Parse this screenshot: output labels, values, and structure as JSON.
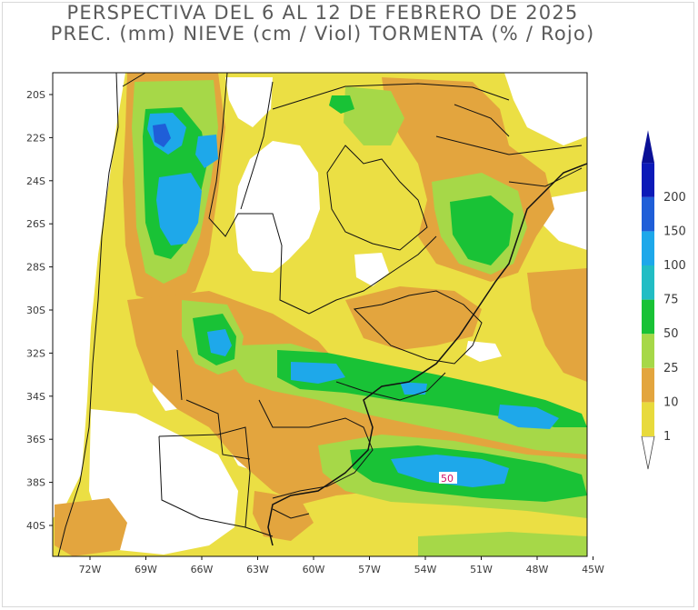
{
  "header": {
    "title_line1": "PERSPECTIVA DEL 6 AL 12 DE FEBRERO DE 2025",
    "title_line2": "PREC. (mm) NIEVE (cm / Viol) TORMENTA (% / Rojo)"
  },
  "axes": {
    "lat_labels": [
      "20S",
      "22S",
      "24S",
      "26S",
      "28S",
      "30S",
      "32S",
      "34S",
      "36S",
      "38S",
      "40S"
    ],
    "lon_labels": [
      "72W",
      "69W",
      "66W",
      "63W",
      "60W",
      "57W",
      "54W",
      "51W",
      "48W",
      "45W"
    ]
  },
  "legend": {
    "bins": [
      {
        "label": "1",
        "color": "#e8da3c"
      },
      {
        "label": "10",
        "color": "#e3a53e"
      },
      {
        "label": "25",
        "color": "#a6d848"
      },
      {
        "label": "50",
        "color": "#19c236"
      },
      {
        "label": "75",
        "color": "#22bdc4"
      },
      {
        "label": "100",
        "color": "#1ea8ea"
      },
      {
        "label": "150",
        "color": "#1f5ed8"
      },
      {
        "label": "200",
        "color": "#0c1ab8"
      }
    ],
    "under_color": "#ffffff",
    "over_color": "#0a1096"
  },
  "map": {
    "background": "#f0e88e",
    "storm_annotation": "50"
  }
}
